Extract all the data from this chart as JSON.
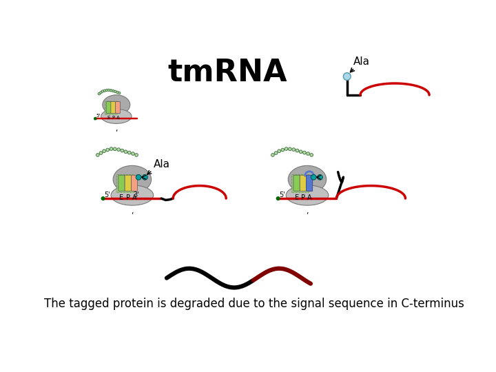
{
  "title": "tmRNA",
  "title_fontsize": 32,
  "subtitle": "The tagged protein is degraded due to the signal sequence in C-terminus",
  "subtitle_fontsize": 12,
  "bg_color": "#ffffff",
  "ala_label": "Ala",
  "salmon": "#f4a080",
  "yellow": "#ddcc44",
  "lime": "#88cc55",
  "blue2": "#5577cc",
  "purple_light": "#cc99cc",
  "teal": "#00a0a0",
  "red_line": "#cc0000",
  "dark_red": "#800000",
  "gray1": "#aaaaaa",
  "gray2": "#c0c0c0",
  "green_bead": "#b8dca8",
  "green_bead_edge": "#447744"
}
